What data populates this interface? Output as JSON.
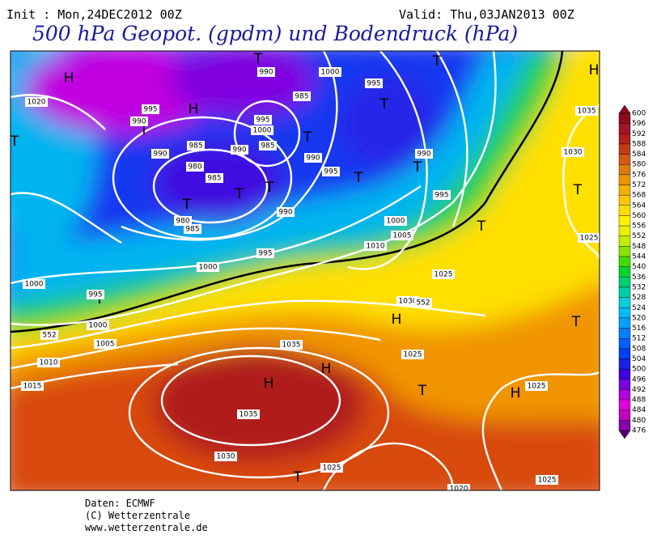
{
  "header": {
    "init": "Init : Mon,24DEC2012 00Z",
    "valid": "Valid: Thu,03JAN2013 00Z",
    "title": "500 hPa Geopot. (gpdm) und Bodendruck (hPa)"
  },
  "colorbar": {
    "levels": [
      "600",
      "596",
      "592",
      "588",
      "584",
      "580",
      "576",
      "572",
      "568",
      "564",
      "560",
      "556",
      "552",
      "548",
      "544",
      "540",
      "536",
      "532",
      "528",
      "524",
      "520",
      "516",
      "512",
      "508",
      "504",
      "500",
      "496",
      "492",
      "488",
      "484",
      "480",
      "476"
    ],
    "colors": [
      "#8b0a1e",
      "#a01428",
      "#b4201c",
      "#c43a18",
      "#d45a10",
      "#e07a08",
      "#ec9400",
      "#f6ae00",
      "#fcc800",
      "#ffdc00",
      "#fff000",
      "#e8f000",
      "#c0ec00",
      "#88e400",
      "#40dc00",
      "#00d430",
      "#00d070",
      "#00d0a8",
      "#00d0d8",
      "#00bcf4",
      "#00a0ff",
      "#0080ff",
      "#0060ff",
      "#0040f0",
      "#1c20e4",
      "#4000e0",
      "#7800e0",
      "#b000e0",
      "#e000e0",
      "#c000c0",
      "#8a00a8",
      "#500070"
    ]
  },
  "map": {
    "markers": [
      "H",
      "H",
      "H",
      "H",
      "H",
      "H",
      "H",
      "T",
      "T",
      "T",
      "T",
      "T",
      "T",
      "T",
      "T",
      "T",
      "T",
      "T",
      "T",
      "T",
      "T",
      "T",
      "T",
      "T"
    ],
    "isobar_labels": [
      "1020",
      "990",
      "995",
      "990",
      "985",
      "980",
      "985",
      "980",
      "985",
      "990",
      "995",
      "1000",
      "985",
      "990",
      "995",
      "1000",
      "1000",
      "995",
      "1000",
      "1005",
      "1010",
      "1015",
      "990",
      "985",
      "990",
      "995",
      "1000",
      "995",
      "990",
      "995",
      "1000",
      "1005",
      "1010",
      "1025",
      "1030",
      "1035",
      "1025",
      "1035",
      "1030",
      "1025",
      "1025",
      "1025",
      "1030",
      "1035",
      "1025",
      "1020",
      "552",
      "552"
    ]
  },
  "footer": {
    "lines": [
      "Daten: ECMWF",
      "(C) Wetterzentrale",
      "www.wetterzentrale.de"
    ]
  }
}
